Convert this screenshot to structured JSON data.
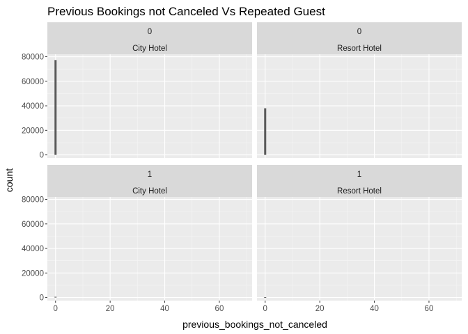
{
  "chart_data": {
    "type": "bar",
    "title": "Previous Bookings not Canceled Vs Repeated Guest",
    "xlabel": "previous_bookings_not_canceled",
    "ylabel": "count",
    "xlim": [
      -3,
      72
    ],
    "ylim": [
      -2500,
      82000
    ],
    "x_ticks": [
      0,
      20,
      40,
      60
    ],
    "y_ticks": [
      0,
      20000,
      40000,
      60000,
      80000
    ],
    "x_tick_labels": [
      "0",
      "20",
      "40",
      "60"
    ],
    "y_tick_labels": [
      "0",
      "20000",
      "40000",
      "60000",
      "80000"
    ],
    "grid": true,
    "bar_color": "#595959",
    "panel_bg": "#ebebeb",
    "strip_bg": "#d9d9d9",
    "facet_rows": [
      "0",
      "1"
    ],
    "facet_cols": [
      "City Hotel",
      "Resort Hotel"
    ],
    "panels": [
      {
        "row": "0",
        "col": "City Hotel",
        "bars": [
          {
            "x": 0,
            "count": 77300
          }
        ]
      },
      {
        "row": "0",
        "col": "Resort Hotel",
        "bars": [
          {
            "x": 0,
            "count": 38000
          }
        ]
      },
      {
        "row": "1",
        "col": "City Hotel",
        "bars": [
          {
            "x": 0,
            "count": 600
          }
        ]
      },
      {
        "row": "1",
        "col": "Resort Hotel",
        "bars": [
          {
            "x": 0,
            "count": 300
          }
        ]
      }
    ]
  }
}
